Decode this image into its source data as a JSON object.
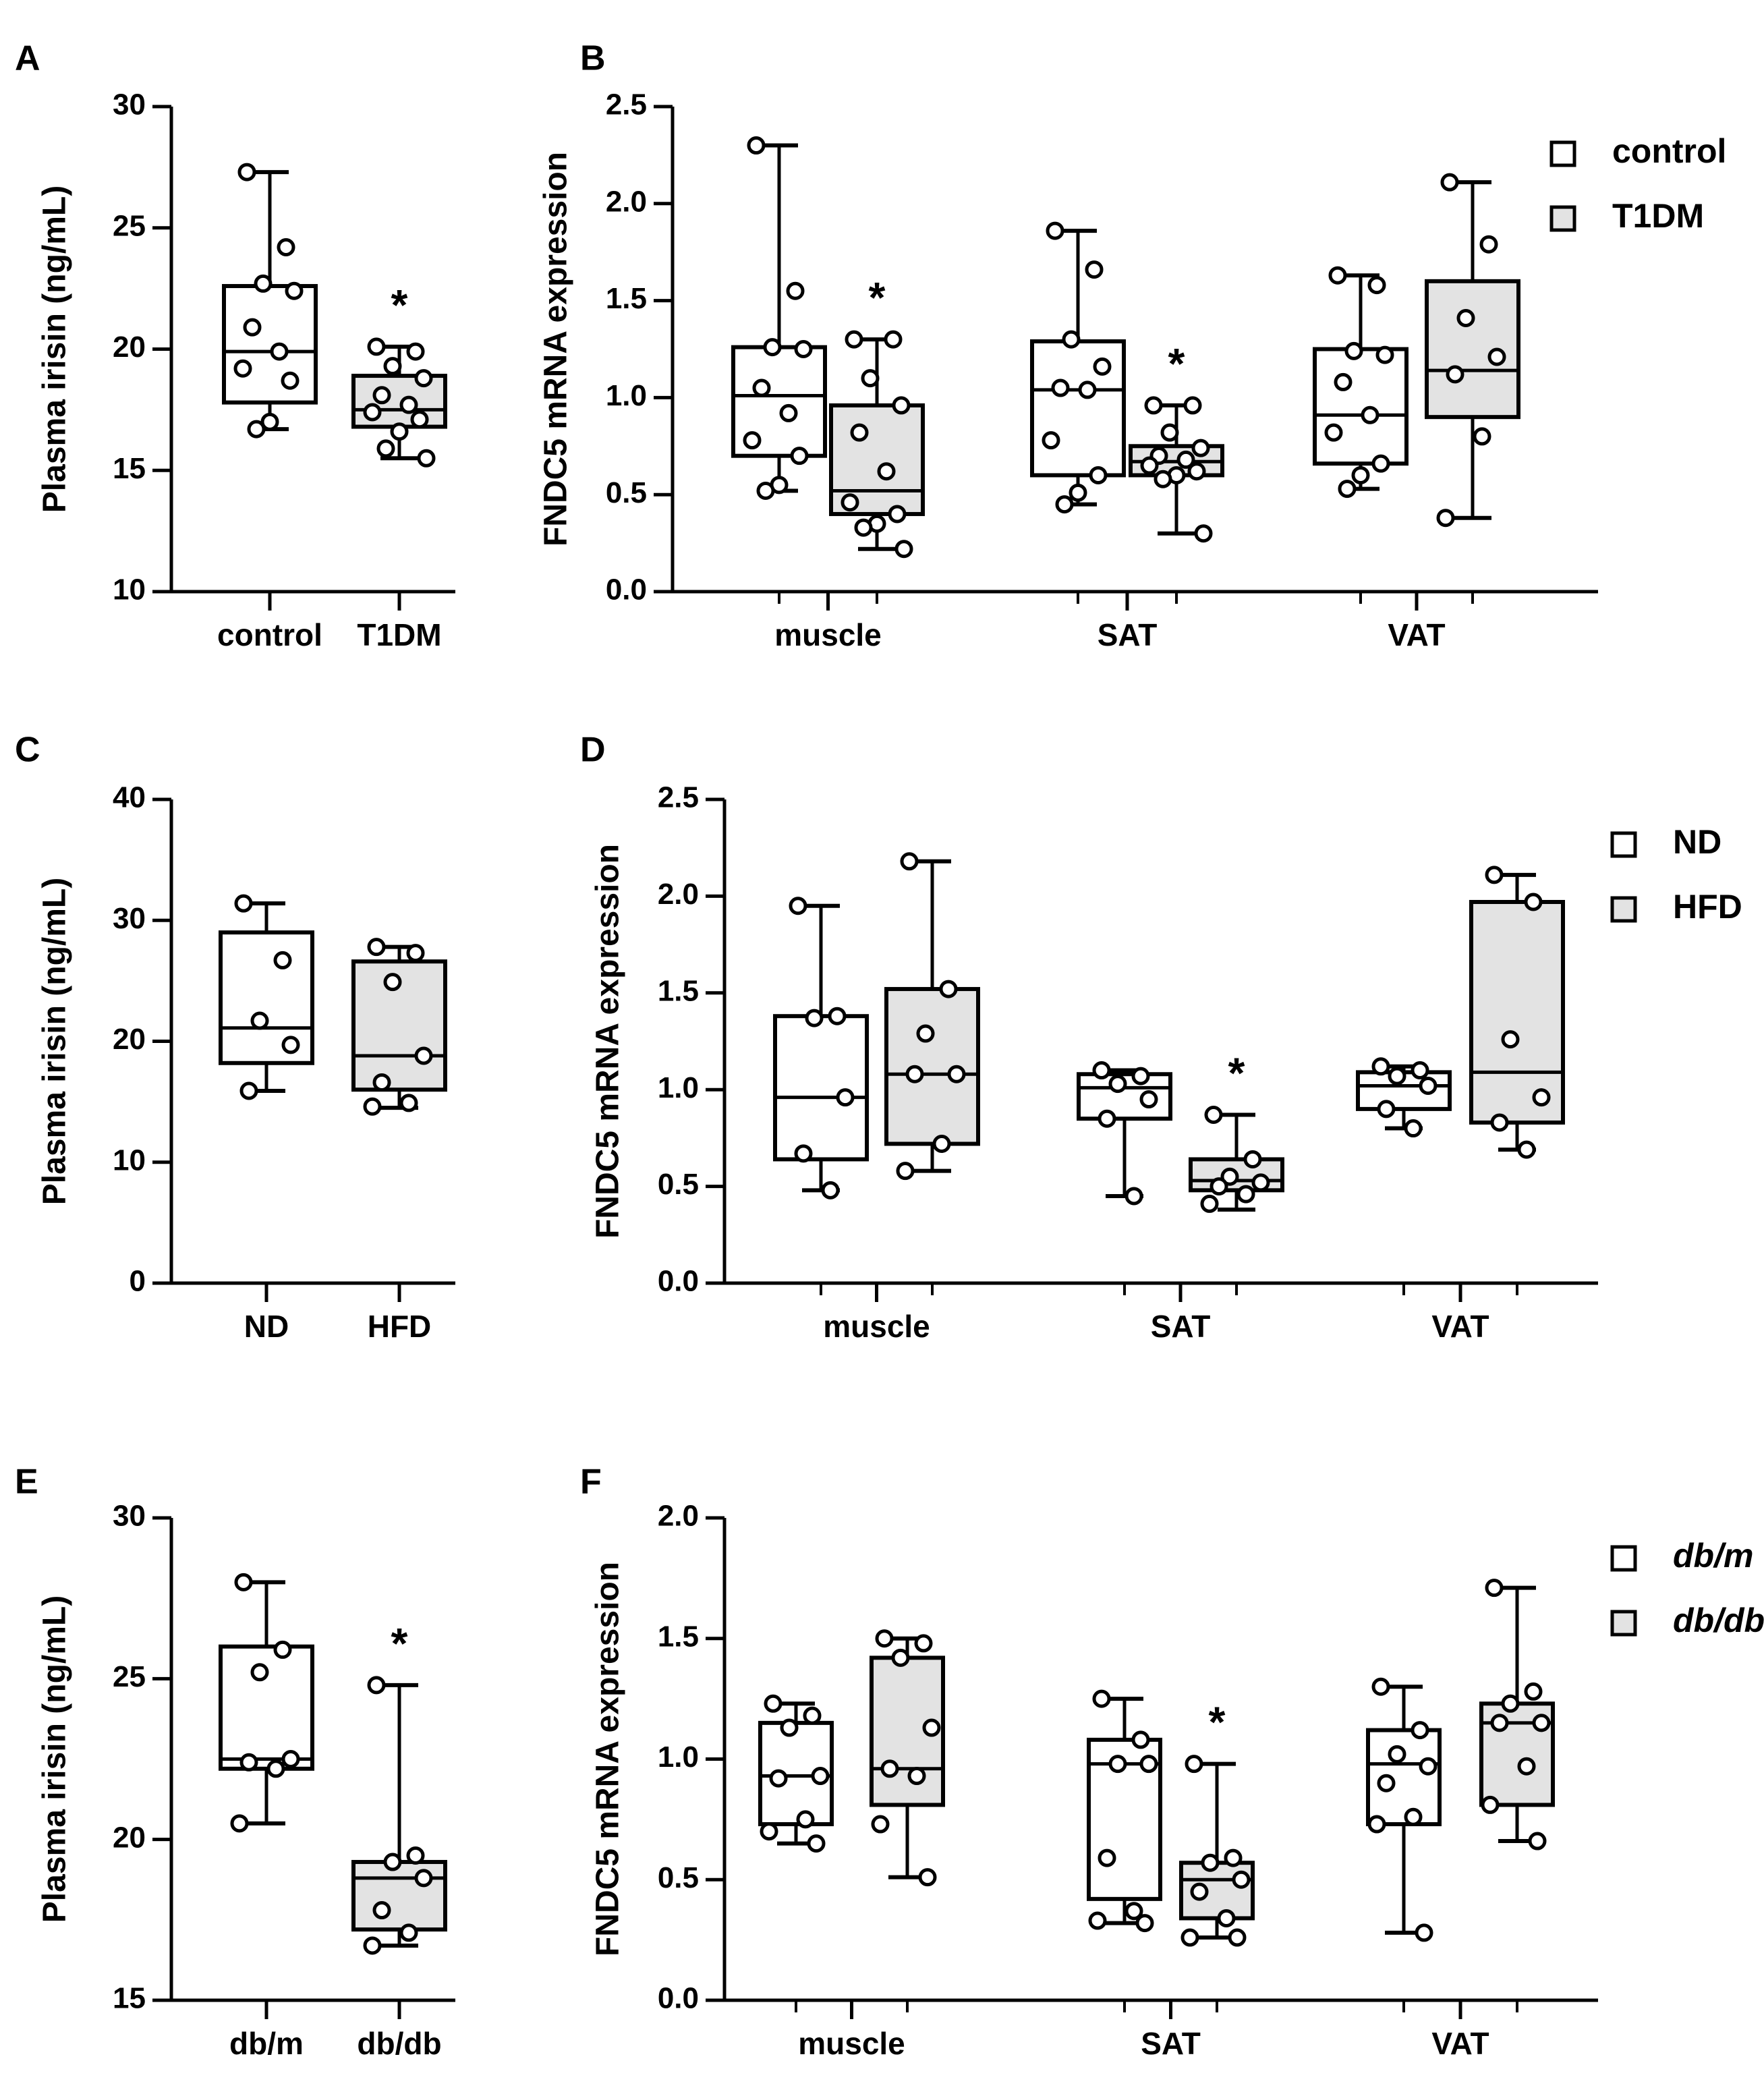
{
  "colors": {
    "control": "#ffffff",
    "treated": "#e3e3e3",
    "stroke": "#000000"
  },
  "chart_data": [
    {
      "id": "A",
      "type": "box",
      "ylabel": "Plasma irisin (ng/mL)",
      "ylim": [
        10,
        30
      ],
      "yticks": [
        10,
        15,
        20,
        25,
        30
      ],
      "ytick_labels": [
        "10",
        "15",
        "20",
        "25",
        "30"
      ],
      "categories": [
        "control",
        "T1DM"
      ],
      "groups": [
        {
          "category": "control",
          "name": "control",
          "color": "#ffffff",
          "min": 16.7,
          "q1": 17.8,
          "median": 19.9,
          "q3": 22.6,
          "max": 27.3,
          "points": [
            27.3,
            24.2,
            22.7,
            22.4,
            20.9,
            19.9,
            19.2,
            18.7,
            17.0,
            16.7
          ],
          "sig": ""
        },
        {
          "category": "T1DM",
          "name": "T1DM",
          "color": "#e3e3e3",
          "min": 15.5,
          "q1": 16.8,
          "median": 17.5,
          "q3": 18.9,
          "max": 20.1,
          "points": [
            20.1,
            19.9,
            19.3,
            18.8,
            18.1,
            17.7,
            17.4,
            17.1,
            16.6,
            15.9,
            15.5
          ],
          "sig": "*"
        }
      ]
    },
    {
      "id": "B",
      "type": "box",
      "ylabel": "FNDC5 mRNA expression",
      "ylim": [
        0,
        2.5
      ],
      "yticks": [
        0,
        0.5,
        1,
        1.5,
        2,
        2.5
      ],
      "ytick_labels": [
        "0.0",
        "0.5",
        "1.0",
        "1.5",
        "2.0",
        "2.5"
      ],
      "categories": [
        "muscle",
        "SAT",
        "VAT"
      ],
      "legend": [
        "control",
        "T1DM"
      ],
      "legend_italic": false,
      "groups": [
        {
          "category": "muscle",
          "name": "control",
          "color": "#ffffff",
          "min": 0.52,
          "q1": 0.7,
          "median": 1.01,
          "q3": 1.26,
          "max": 2.3,
          "points": [
            2.3,
            1.55,
            1.26,
            1.25,
            1.05,
            0.92,
            0.78,
            0.7,
            0.55,
            0.52
          ],
          "sig": ""
        },
        {
          "category": "muscle",
          "name": "T1DM",
          "color": "#e3e3e3",
          "min": 0.22,
          "q1": 0.4,
          "median": 0.52,
          "q3": 0.96,
          "max": 1.3,
          "points": [
            1.3,
            1.3,
            1.1,
            0.96,
            0.82,
            0.62,
            0.46,
            0.4,
            0.35,
            0.33,
            0.22
          ],
          "sig": "*"
        },
        {
          "category": "SAT",
          "name": "control",
          "color": "#ffffff",
          "min": 0.45,
          "q1": 0.6,
          "median": 1.04,
          "q3": 1.29,
          "max": 1.86,
          "points": [
            1.86,
            1.66,
            1.3,
            1.16,
            1.05,
            1.04,
            0.78,
            0.6,
            0.51,
            0.45
          ],
          "sig": ""
        },
        {
          "category": "SAT",
          "name": "T1DM",
          "color": "#e3e3e3",
          "min": 0.3,
          "q1": 0.6,
          "median": 0.67,
          "q3": 0.75,
          "max": 0.96,
          "points": [
            0.96,
            0.96,
            0.82,
            0.74,
            0.7,
            0.68,
            0.65,
            0.62,
            0.6,
            0.58,
            0.3
          ],
          "sig": "*"
        },
        {
          "category": "VAT",
          "name": "control",
          "color": "#ffffff",
          "min": 0.53,
          "q1": 0.66,
          "median": 0.91,
          "q3": 1.25,
          "max": 1.63,
          "points": [
            1.63,
            1.58,
            1.24,
            1.22,
            1.08,
            0.91,
            0.82,
            0.66,
            0.6,
            0.53
          ],
          "sig": ""
        },
        {
          "category": "VAT",
          "name": "T1DM",
          "color": "#e3e3e3",
          "min": 0.38,
          "q1": 0.9,
          "median": 1.14,
          "q3": 1.6,
          "max": 2.11,
          "points": [
            2.11,
            1.79,
            1.41,
            1.21,
            1.12,
            0.8,
            0.38
          ],
          "sig": ""
        }
      ]
    },
    {
      "id": "C",
      "type": "box",
      "ylabel": "Plasma irisin (ng/mL)",
      "ylim": [
        0,
        40
      ],
      "yticks": [
        0,
        10,
        20,
        30,
        40
      ],
      "ytick_labels": [
        "0",
        "10",
        "20",
        "30",
        "40"
      ],
      "categories": [
        "ND",
        "HFD"
      ],
      "groups": [
        {
          "category": "ND",
          "name": "ND",
          "color": "#ffffff",
          "min": 15.9,
          "q1": 18.2,
          "median": 21.1,
          "q3": 29.0,
          "max": 31.4,
          "points": [
            31.4,
            26.7,
            21.7,
            19.7,
            15.9
          ],
          "sig": ""
        },
        {
          "category": "HFD",
          "name": "HFD",
          "color": "#e3e3e3",
          "min": 14.5,
          "q1": 16.0,
          "median": 18.8,
          "q3": 26.6,
          "max": 27.8,
          "points": [
            27.8,
            27.3,
            24.9,
            18.8,
            16.6,
            14.9,
            14.6
          ],
          "sig": ""
        }
      ]
    },
    {
      "id": "D",
      "type": "box",
      "ylabel": "FNDC5 mRNA expression",
      "ylim": [
        0,
        2.5
      ],
      "yticks": [
        0,
        0.5,
        1,
        1.5,
        2,
        2.5
      ],
      "ytick_labels": [
        "0.0",
        "0.5",
        "1.0",
        "1.5",
        "2.0",
        "2.5"
      ],
      "categories": [
        "muscle",
        "SAT",
        "VAT"
      ],
      "legend": [
        "ND",
        "HFD"
      ],
      "legend_italic": false,
      "groups": [
        {
          "category": "muscle",
          "name": "ND",
          "color": "#ffffff",
          "min": 0.48,
          "q1": 0.64,
          "median": 0.96,
          "q3": 1.38,
          "max": 1.95,
          "points": [
            1.95,
            1.38,
            1.37,
            0.96,
            0.67,
            0.48
          ],
          "sig": ""
        },
        {
          "category": "muscle",
          "name": "HFD",
          "color": "#e3e3e3",
          "min": 0.58,
          "q1": 0.72,
          "median": 1.08,
          "q3": 1.52,
          "max": 2.18,
          "points": [
            2.18,
            1.52,
            1.29,
            1.08,
            1.08,
            0.72,
            0.58
          ],
          "sig": ""
        },
        {
          "category": "SAT",
          "name": "ND",
          "color": "#ffffff",
          "min": 0.45,
          "q1": 0.85,
          "median": 1.01,
          "q3": 1.08,
          "max": 1.1,
          "points": [
            1.1,
            1.07,
            1.03,
            0.95,
            0.85,
            0.45
          ],
          "sig": ""
        },
        {
          "category": "SAT",
          "name": "HFD",
          "color": "#e3e3e3",
          "min": 0.38,
          "q1": 0.48,
          "median": 0.53,
          "q3": 0.64,
          "max": 0.87,
          "points": [
            0.87,
            0.64,
            0.55,
            0.52,
            0.5,
            0.46,
            0.41
          ],
          "sig": "*"
        },
        {
          "category": "VAT",
          "name": "ND",
          "color": "#ffffff",
          "min": 0.8,
          "q1": 0.9,
          "median": 1.02,
          "q3": 1.09,
          "max": 1.12,
          "points": [
            1.12,
            1.1,
            1.07,
            1.02,
            0.9,
            0.8
          ],
          "sig": ""
        },
        {
          "category": "VAT",
          "name": "HFD",
          "color": "#e3e3e3",
          "min": 0.69,
          "q1": 0.83,
          "median": 1.09,
          "q3": 1.97,
          "max": 2.11,
          "points": [
            2.11,
            1.97,
            1.26,
            0.96,
            0.83,
            0.69
          ],
          "sig": ""
        }
      ]
    },
    {
      "id": "E",
      "type": "box",
      "ylabel": "Plasma irisin (ng/mL)",
      "ylim": [
        15,
        30
      ],
      "yticks": [
        15,
        20,
        25,
        30
      ],
      "ytick_labels": [
        "15",
        "20",
        "25",
        "30"
      ],
      "categories": [
        "db/m",
        "db/db"
      ],
      "groups": [
        {
          "category": "db/m",
          "name": "db/m",
          "color": "#ffffff",
          "min": 20.5,
          "q1": 22.2,
          "median": 22.5,
          "q3": 26.0,
          "max": 28.0,
          "points": [
            28.0,
            25.9,
            25.2,
            22.5,
            22.4,
            22.2,
            20.5
          ],
          "sig": ""
        },
        {
          "category": "db/db",
          "name": "db/db",
          "color": "#e3e3e3",
          "min": 16.7,
          "q1": 17.2,
          "median": 18.8,
          "q3": 19.3,
          "max": 24.8,
          "points": [
            24.8,
            19.5,
            19.3,
            18.8,
            17.8,
            17.1,
            16.7
          ],
          "sig": "*"
        }
      ]
    },
    {
      "id": "F",
      "type": "box",
      "ylabel": "FNDC5 mRNA expression",
      "ylim": [
        0,
        2
      ],
      "yticks": [
        0,
        0.5,
        1,
        1.5,
        2
      ],
      "ytick_labels": [
        "0.0",
        "0.5",
        "1.0",
        "1.5",
        "2.0"
      ],
      "categories": [
        "muscle",
        "SAT",
        "VAT"
      ],
      "legend": [
        "db/m",
        "db/db"
      ],
      "legend_italic": true,
      "groups": [
        {
          "category": "muscle",
          "name": "db/m",
          "color": "#ffffff",
          "min": 0.65,
          "q1": 0.73,
          "median": 0.93,
          "q3": 1.15,
          "max": 1.23,
          "points": [
            1.23,
            1.18,
            1.13,
            0.93,
            0.92,
            0.75,
            0.7,
            0.65
          ],
          "sig": ""
        },
        {
          "category": "muscle",
          "name": "db/db",
          "color": "#e3e3e3",
          "min": 0.51,
          "q1": 0.81,
          "median": 0.96,
          "q3": 1.42,
          "max": 1.5,
          "points": [
            1.5,
            1.48,
            1.42,
            1.13,
            0.96,
            0.93,
            0.73,
            0.51
          ],
          "sig": ""
        },
        {
          "category": "SAT",
          "name": "db/m",
          "color": "#ffffff",
          "min": 0.32,
          "q1": 0.42,
          "median": 0.98,
          "q3": 1.08,
          "max": 1.25,
          "points": [
            1.25,
            1.08,
            0.98,
            0.98,
            0.59,
            0.37,
            0.33,
            0.32
          ],
          "sig": ""
        },
        {
          "category": "SAT",
          "name": "db/db",
          "color": "#e3e3e3",
          "min": 0.26,
          "q1": 0.34,
          "median": 0.5,
          "q3": 0.57,
          "max": 0.98,
          "points": [
            0.98,
            0.59,
            0.57,
            0.5,
            0.45,
            0.34,
            0.26,
            0.26
          ],
          "sig": "*"
        },
        {
          "category": "VAT",
          "name": "db/m",
          "color": "#ffffff",
          "min": 0.28,
          "q1": 0.73,
          "median": 0.98,
          "q3": 1.12,
          "max": 1.3,
          "points": [
            1.3,
            1.12,
            1.02,
            0.97,
            0.9,
            0.76,
            0.73,
            0.28
          ],
          "sig": ""
        },
        {
          "category": "VAT",
          "name": "db/db",
          "color": "#e3e3e3",
          "min": 0.66,
          "q1": 0.81,
          "median": 1.15,
          "q3": 1.23,
          "max": 1.71,
          "points": [
            1.71,
            1.28,
            1.23,
            1.15,
            1.15,
            0.97,
            0.81,
            0.66
          ],
          "sig": ""
        }
      ]
    }
  ]
}
